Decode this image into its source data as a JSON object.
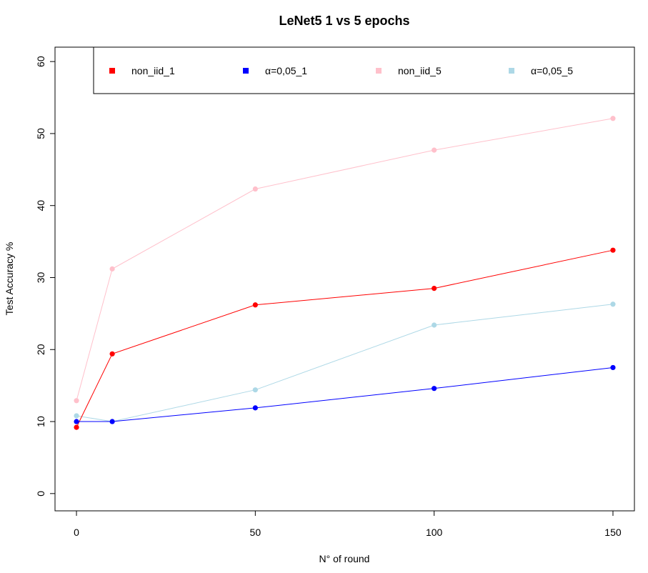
{
  "chart_data": {
    "type": "line",
    "title": "LeNet5 1 vs 5 epochs",
    "xlabel": "N° of round",
    "ylabel": "Test Accuracy %",
    "x": [
      0,
      10,
      50,
      100,
      150
    ],
    "xticks": [
      "0",
      "50",
      "100",
      "150"
    ],
    "xtick_values": [
      0,
      50,
      100,
      150
    ],
    "yticks": [
      "0",
      "10",
      "20",
      "30",
      "40",
      "50",
      "60"
    ],
    "ytick_values": [
      0,
      10,
      20,
      30,
      40,
      50,
      60
    ],
    "xlim": [
      -6,
      156
    ],
    "ylim": [
      -2.4,
      62
    ],
    "legend_position": "top",
    "grid": false,
    "series": [
      {
        "name": "non_iid_1",
        "color": "#ff0000",
        "values": [
          9.2,
          19.4,
          26.2,
          28.5,
          33.8
        ]
      },
      {
        "name": "α=0,05_1",
        "color": "#0000ff",
        "values": [
          10.0,
          10.0,
          11.9,
          14.6,
          17.5
        ]
      },
      {
        "name": "non_iid_5",
        "color": "#ffc0cb",
        "values": [
          12.9,
          31.2,
          42.3,
          47.7,
          52.1
        ]
      },
      {
        "name": "α=0,05_5",
        "color": "#add8e6",
        "values": [
          10.8,
          10.0,
          14.4,
          23.4,
          26.3
        ]
      }
    ]
  }
}
